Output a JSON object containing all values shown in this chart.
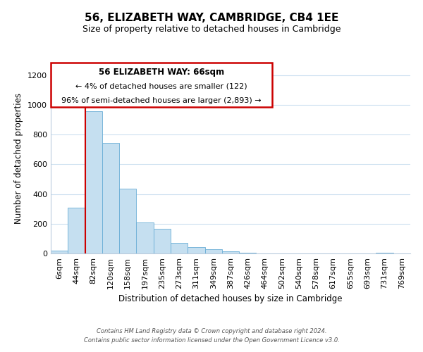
{
  "title": "56, ELIZABETH WAY, CAMBRIDGE, CB4 1EE",
  "subtitle": "Size of property relative to detached houses in Cambridge",
  "xlabel": "Distribution of detached houses by size in Cambridge",
  "ylabel": "Number of detached properties",
  "bar_color": "#c5dff0",
  "bar_edge_color": "#6aaed6",
  "categories": [
    "6sqm",
    "44sqm",
    "82sqm",
    "120sqm",
    "158sqm",
    "197sqm",
    "235sqm",
    "273sqm",
    "311sqm",
    "349sqm",
    "387sqm",
    "426sqm",
    "464sqm",
    "502sqm",
    "540sqm",
    "578sqm",
    "617sqm",
    "655sqm",
    "693sqm",
    "731sqm",
    "769sqm"
  ],
  "values": [
    20,
    310,
    960,
    745,
    435,
    210,
    165,
    70,
    45,
    30,
    15,
    5,
    0,
    0,
    0,
    0,
    0,
    0,
    0,
    7,
    0
  ],
  "ylim": [
    0,
    1280
  ],
  "yticks": [
    0,
    200,
    400,
    600,
    800,
    1000,
    1200
  ],
  "vline_color": "#cc0000",
  "annotation_title": "56 ELIZABETH WAY: 66sqm",
  "annotation_line1": "← 4% of detached houses are smaller (122)",
  "annotation_line2": "96% of semi-detached houses are larger (2,893) →",
  "annotation_box_color": "#ffffff",
  "annotation_box_edge_color": "#cc0000",
  "footer_line1": "Contains HM Land Registry data © Crown copyright and database right 2024.",
  "footer_line2": "Contains public sector information licensed under the Open Government Licence v3.0.",
  "background_color": "#ffffff",
  "grid_color": "#cce0f0"
}
